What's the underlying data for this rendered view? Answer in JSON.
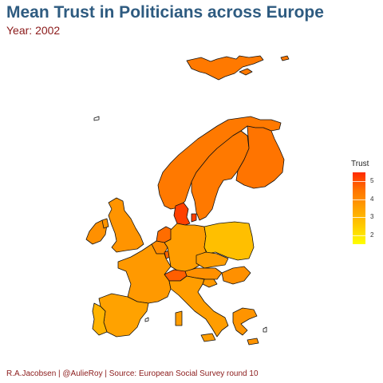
{
  "title": "Mean Trust in Politicians across Europe",
  "subtitle": "Year: 2002",
  "caption": "R.A.Jacobsen | @AulieRoy | Source: European Social Survey round 10",
  "legend": {
    "title": "Trust",
    "ticks": [
      5,
      4,
      3,
      2
    ],
    "min": 1.5,
    "max": 5.5,
    "colors": [
      "#ffff00",
      "#ffcc00",
      "#ffa200",
      "#ff7400",
      "#ff2a00"
    ]
  },
  "map_data": {
    "type": "choropleth",
    "variable": "Trust",
    "regions": [
      {
        "id": "svalbard",
        "value": 4.4
      },
      {
        "id": "norway",
        "value": 4.4
      },
      {
        "id": "sweden",
        "value": 4.4
      },
      {
        "id": "finland",
        "value": 4.5
      },
      {
        "id": "denmark",
        "value": 5.2
      },
      {
        "id": "ireland",
        "value": 3.9
      },
      {
        "id": "united-kingdom",
        "value": 3.8
      },
      {
        "id": "netherlands",
        "value": 4.6
      },
      {
        "id": "belgium",
        "value": 4.0
      },
      {
        "id": "luxembourg",
        "value": 4.7
      },
      {
        "id": "germany",
        "value": 3.6
      },
      {
        "id": "poland",
        "value": 2.8
      },
      {
        "id": "czechia",
        "value": 3.6
      },
      {
        "id": "austria",
        "value": 3.9
      },
      {
        "id": "hungary",
        "value": 3.9
      },
      {
        "id": "slovenia",
        "value": 3.7
      },
      {
        "id": "switzerland",
        "value": 4.8
      },
      {
        "id": "france",
        "value": 3.7
      },
      {
        "id": "spain",
        "value": 3.5
      },
      {
        "id": "portugal",
        "value": 3.1
      },
      {
        "id": "italy",
        "value": 3.6
      },
      {
        "id": "greece",
        "value": 3.8
      }
    ]
  }
}
